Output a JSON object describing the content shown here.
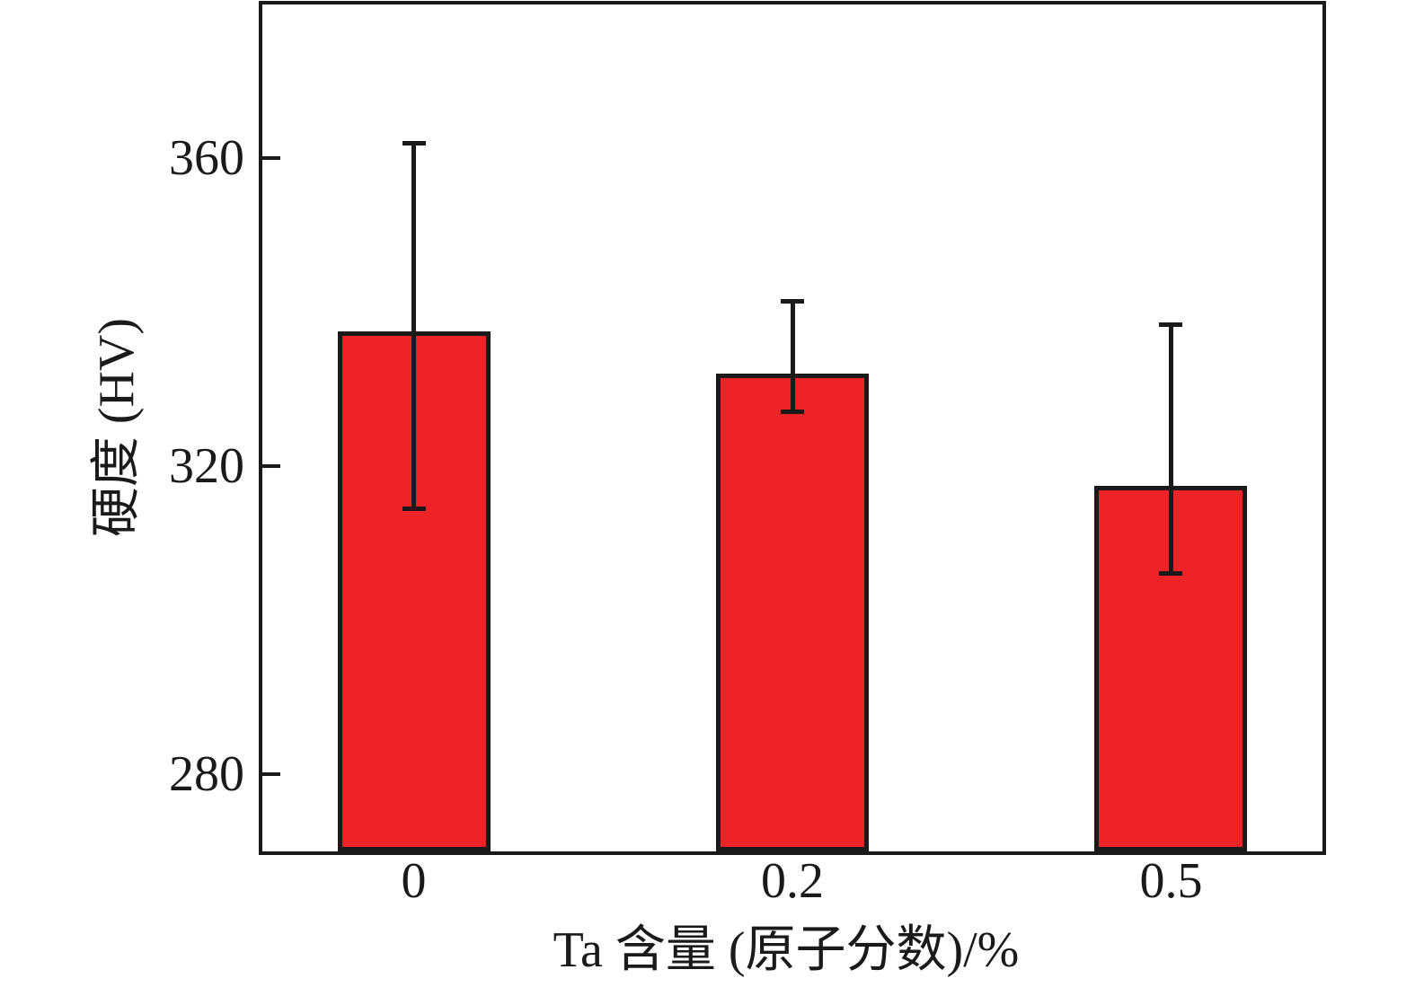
{
  "figure": {
    "background": "#ffffff",
    "axis_color": "#1b191a"
  },
  "chart_data": {
    "type": "bar",
    "title": "",
    "xlabel": "Ta 含量 (原子分数)/%",
    "ylabel": "硬度 (HV)",
    "categories": [
      "0",
      "0.2",
      "0.5"
    ],
    "values": [
      337.5,
      332,
      317.5
    ],
    "error_caps_top": [
      362,
      341.5,
      338.5
    ],
    "error_caps_bottom": [
      314.5,
      327,
      306
    ],
    "ylim": [
      270,
      380
    ],
    "yticks": [
      280,
      320,
      360
    ],
    "bar_color": "#EE2328",
    "bar_edge_color": "#1b191a",
    "grid": false,
    "legend": null
  }
}
